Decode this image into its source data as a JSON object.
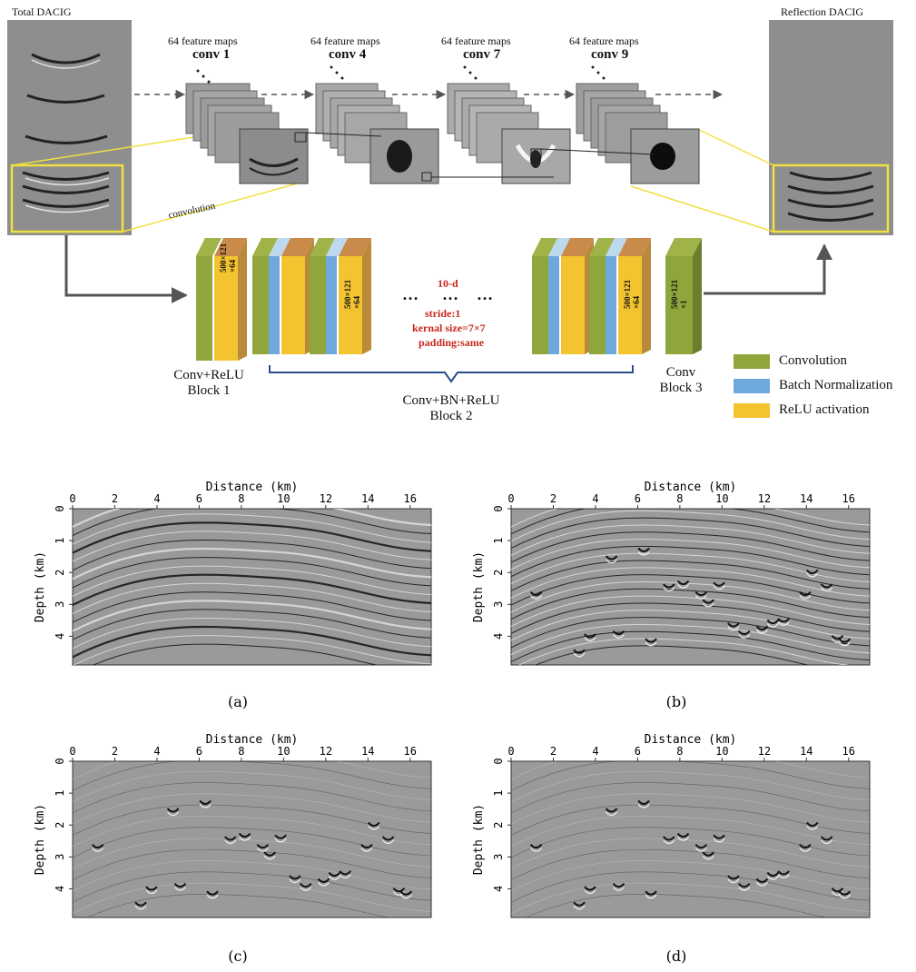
{
  "diagram": {
    "input_title": "Total DACIG",
    "output_title": "Reflection  DACIG",
    "convolution_label": "convolution",
    "stages": [
      {
        "maps": "64 feature maps",
        "name": "conv 1"
      },
      {
        "maps": "64 feature maps",
        "name": "conv 4"
      },
      {
        "maps": "64 feature maps",
        "name": "conv 7"
      },
      {
        "maps": "64 feature maps",
        "name": "conv 9"
      }
    ],
    "block_dims": {
      "b1": "500×121\n×64",
      "b2a": "500×121\n×64",
      "b2b": "500×121\n×64",
      "b3": "500×121\n×1"
    },
    "ellipsis": "…",
    "params": {
      "depth": "10-d",
      "stride": "stride:1",
      "kernel": "kernal size=7×7",
      "padding": "padding:same"
    },
    "blocks": {
      "b1_line1": "Conv+ReLU",
      "b1_line2": "Block 1",
      "b2_line1": "Conv+BN+ReLU",
      "b2_line2": "Block 2",
      "b3_line1": "Conv",
      "b3_line2": "Block 3"
    },
    "legend": [
      {
        "label": "Convolution",
        "color": "#8ea63b"
      },
      {
        "label": "Batch Normalization",
        "color": "#6fa8dc"
      },
      {
        "label": "ReLU activation",
        "color": "#f4c430"
      }
    ]
  },
  "panels": {
    "x_title": "Distance (km)",
    "y_title": "Depth (km)",
    "x_ticks": [
      "0",
      "2",
      "4",
      "6",
      "8",
      "10",
      "12",
      "14",
      "16"
    ],
    "y_ticks": [
      "0",
      "1",
      "2",
      "3",
      "4"
    ],
    "labels": [
      "(a)",
      "(b)",
      "(c)",
      "(d)"
    ]
  }
}
